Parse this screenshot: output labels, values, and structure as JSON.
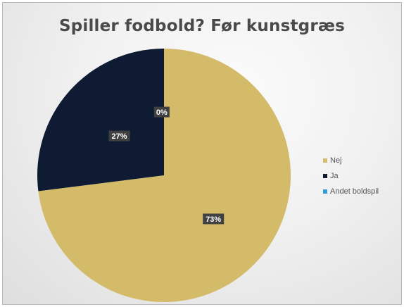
{
  "chart_data": {
    "type": "pie",
    "title": "Spiller fodbold? Før kunstgræs",
    "categories": [
      "Nej",
      "Ja",
      "Andet boldspil"
    ],
    "values": [
      73,
      27,
      0
    ],
    "labels": [
      "73%",
      "27%",
      "0%"
    ],
    "colors": [
      "#d4bb6a",
      "#0e1b33",
      "#2aa0d8"
    ],
    "legend_position": "right"
  }
}
